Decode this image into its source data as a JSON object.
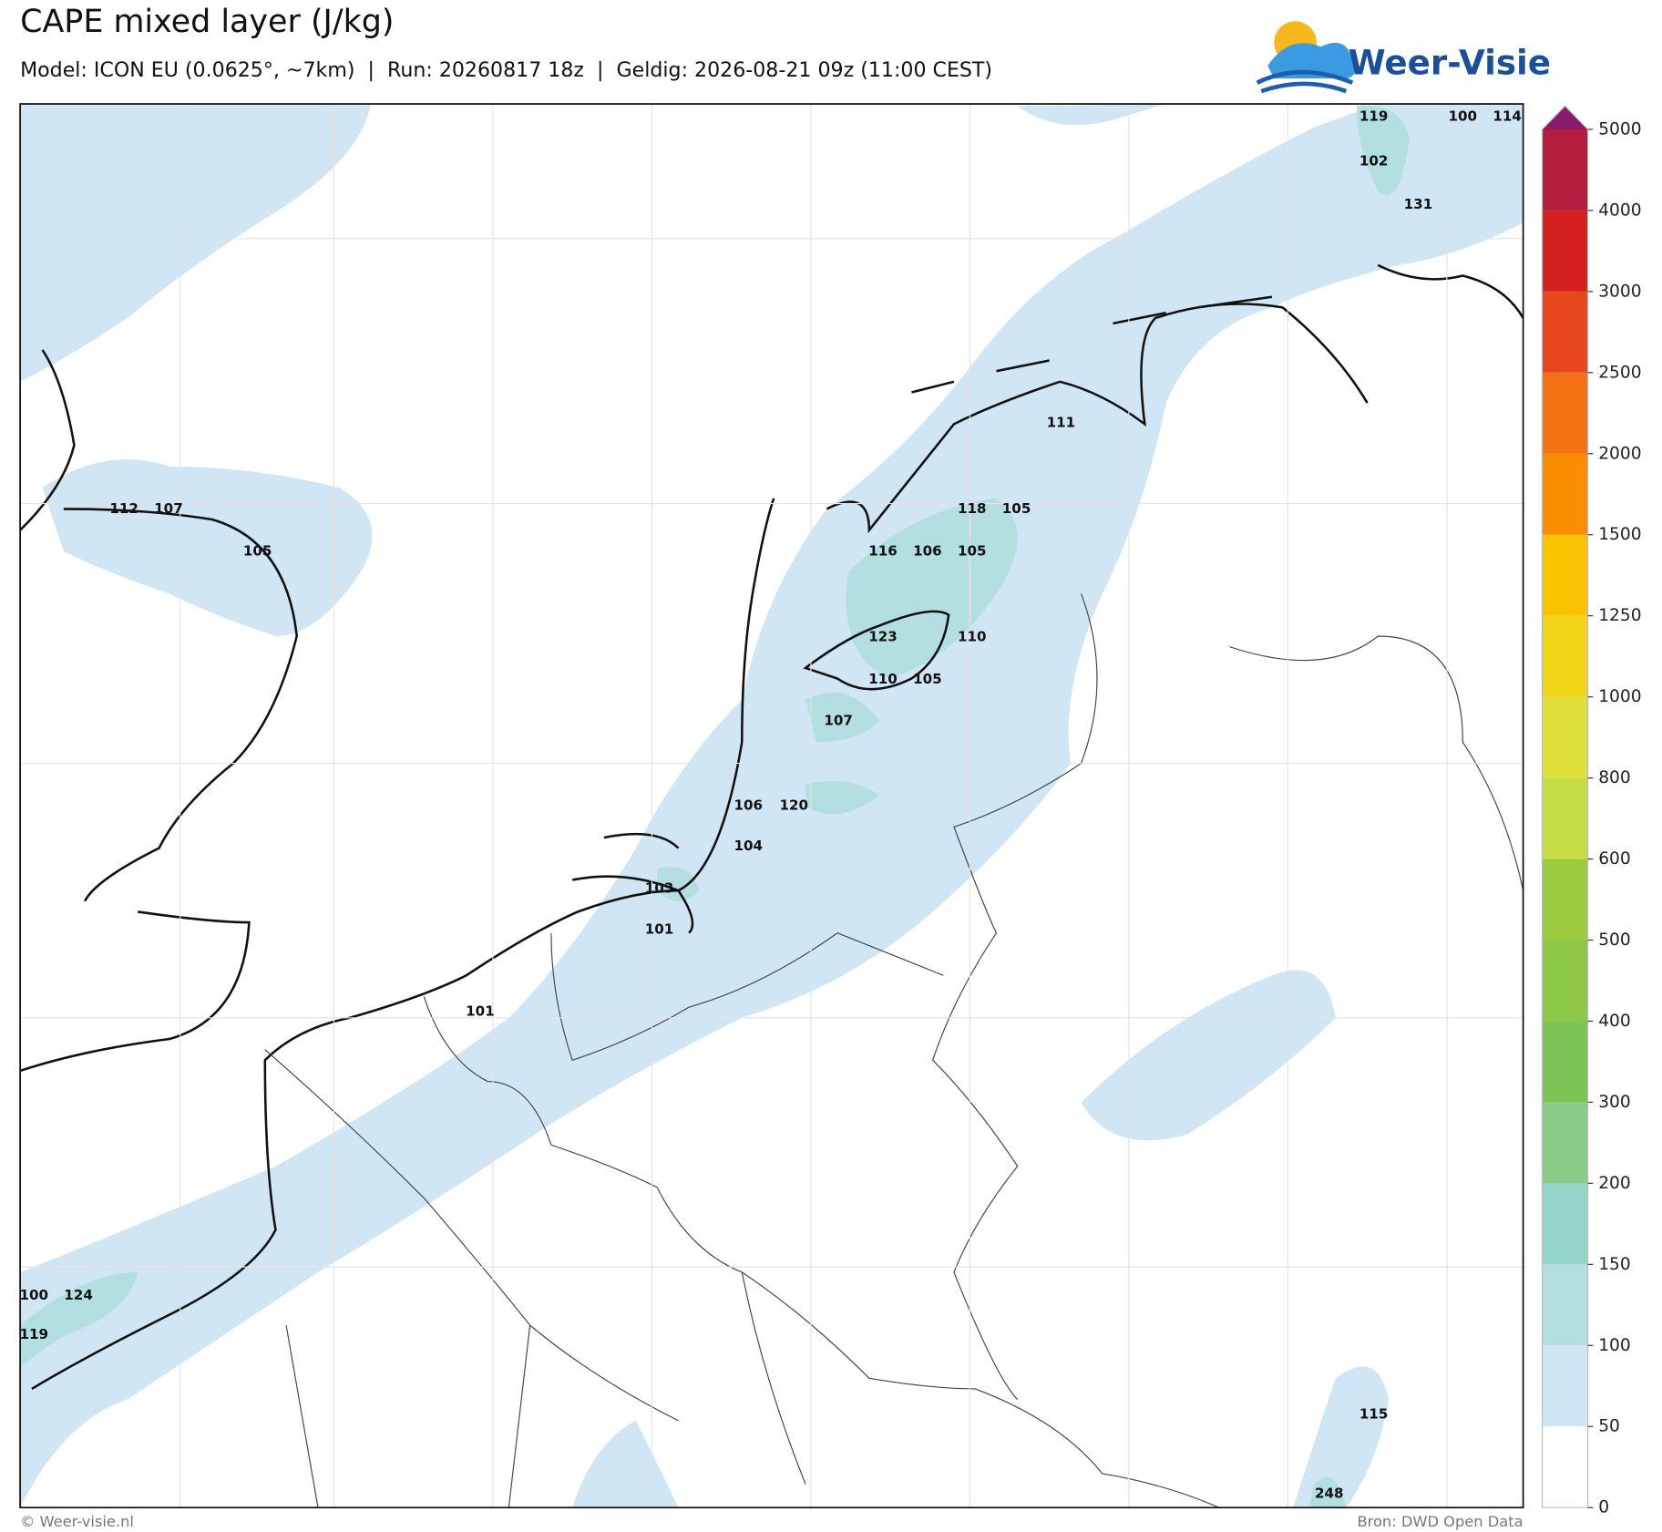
{
  "header": {
    "title": "CAPE mixed layer (J/kg)",
    "subtitle": "Model: ICON EU (0.0625°, ~7km)  |  Run: 20260817 18z  |  Geldig: 2026-08-21 09z (11:00 CEST)",
    "logo": "Weer-Visie"
  },
  "colorbar": {
    "levels": [
      0,
      50,
      100,
      150,
      200,
      300,
      400,
      500,
      600,
      800,
      1000,
      1250,
      1500,
      2000,
      2500,
      3000,
      4000,
      5000
    ],
    "colors": [
      "#ffffff",
      "#d0e6f5",
      "#b3dfe0",
      "#94d3c8",
      "#88cc88",
      "#7cc456",
      "#8dc847",
      "#9ccc3d",
      "#c5dc45",
      "#dfe03a",
      "#f0d418",
      "#fac400",
      "#fa8c00",
      "#f57214",
      "#e8461c",
      "#d62020",
      "#b51d3e"
    ],
    "extend_color": "#8a1a6e"
  },
  "map_labels": [
    119,
    100,
    114,
    102,
    131,
    111,
    118,
    105,
    116,
    106,
    105,
    123,
    110,
    110,
    105,
    107,
    106,
    120,
    104,
    103,
    101,
    101,
    112,
    107,
    105,
    100,
    124,
    119,
    115,
    248
  ],
  "footer": {
    "left": "© Weer-visie.nl",
    "right": "Bron: DWD Open Data"
  }
}
